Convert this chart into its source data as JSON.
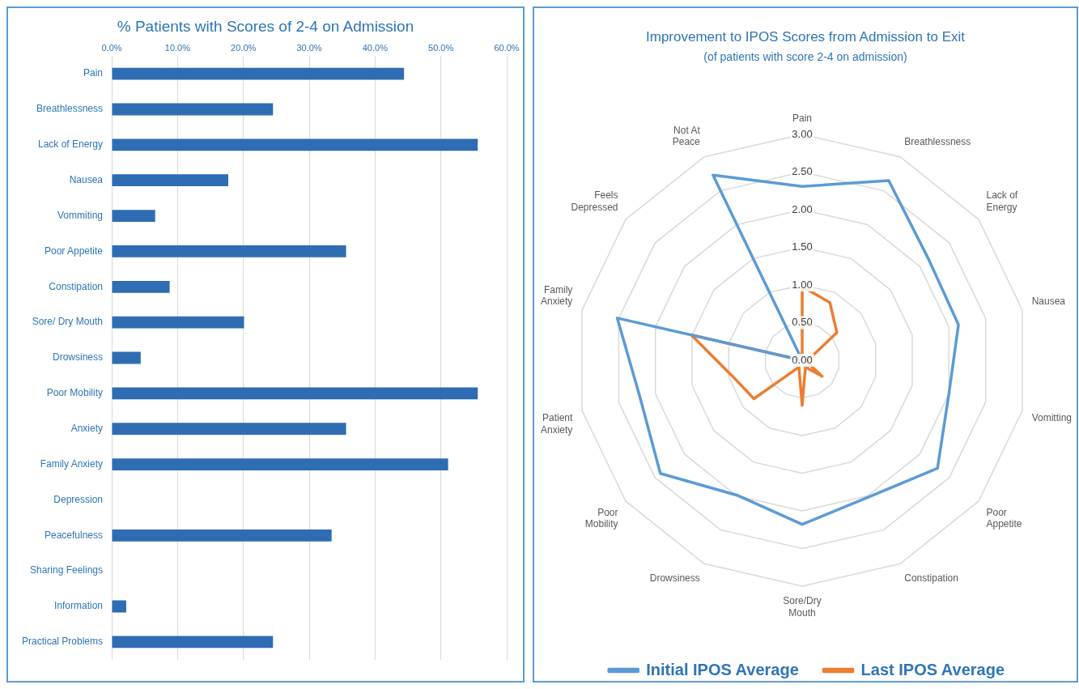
{
  "chart_data": [
    {
      "type": "bar",
      "orientation": "horizontal",
      "title": "% Patients with Scores of 2-4 on Admission",
      "categories": [
        "Pain",
        "Breathlessness",
        "Lack of Energy",
        "Nausea",
        "Vommiting",
        "Poor Appetite",
        "Constipation",
        "Sore/ Dry Mouth",
        "Drowsiness",
        "Poor Mobility",
        "Anxiety",
        "Family Anxiety",
        "Depression",
        "Peacefulness",
        "Sharing Feelings",
        "Information",
        "Practical Problems"
      ],
      "values": [
        44.4,
        24.5,
        55.6,
        17.7,
        6.6,
        35.6,
        8.8,
        20.1,
        4.4,
        55.6,
        35.6,
        51.1,
        0,
        33.4,
        0,
        2.2,
        24.5
      ],
      "color": "#2e6db4",
      "xlim": [
        0,
        60
      ],
      "xticks": [
        {
          "value": 0,
          "label": "0.0%"
        },
        {
          "value": 10,
          "label": "10.0%"
        },
        {
          "value": 20,
          "label": "20.0%"
        },
        {
          "value": 30,
          "label": "30.0%"
        },
        {
          "value": 40,
          "label": "40.0%"
        },
        {
          "value": 50,
          "label": "50.0%"
        },
        {
          "value": 60,
          "label": "60.0%"
        }
      ],
      "grid": "x",
      "legend": false
    },
    {
      "type": "radar",
      "title": "Improvement to IPOS Scores from Admission to Exit",
      "subtitle": "(of patients with score 2-4 on admission)",
      "categories": [
        "Pain",
        "Breathlessness",
        "Lack of Energy",
        "Nausea",
        "Vomitting",
        "Poor Appetite",
        "Constipation",
        "Sore/Dry Mouth",
        "Drowsiness",
        "Poor Mobility",
        "Patient Anxiety",
        "Family Anxiety",
        "Feels Depressed",
        "Not At Peace"
      ],
      "series": [
        {
          "name": "Initial IPOS Average",
          "color": "#5b9bd5",
          "values": [
            2.31,
            2.65,
            2.15,
            2.13,
            2.0,
            2.3,
            2.02,
            2.18,
            1.99,
            2.41,
            2.21,
            2.52,
            0,
            2.73
          ]
        },
        {
          "name": "Last IPOS Average",
          "color": "#ed7d31",
          "values": [
            0.98,
            0.85,
            0.59,
            0.1,
            0.05,
            0.34,
            0.1,
            0.6,
            0.1,
            0.82,
            0.95,
            1.51,
            0,
            0
          ]
        }
      ],
      "ylim": [
        0,
        3
      ],
      "yticks": [
        {
          "value": 0,
          "label": "0.00"
        },
        {
          "value": 0.5,
          "label": "0.50"
        },
        {
          "value": 1,
          "label": "1.00"
        },
        {
          "value": 1.5,
          "label": "1.50"
        },
        {
          "value": 2,
          "label": "2.00"
        },
        {
          "value": 2.5,
          "label": "2.50"
        },
        {
          "value": 3,
          "label": "3.00"
        }
      ],
      "grid": true,
      "legend": "bottom",
      "marker": "none",
      "line_style": "solid"
    }
  ]
}
